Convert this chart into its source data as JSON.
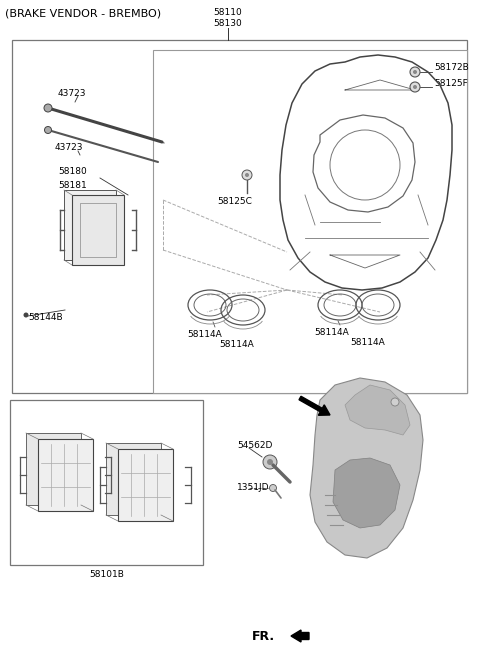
{
  "bg_color": "#ffffff",
  "fig_width": 4.8,
  "fig_height": 6.57,
  "dpi": 100,
  "labels": {
    "title": "(BRAKE VENDOR - BREMBO)",
    "top_center_1": "58110",
    "top_center_2": "58130",
    "l_43723_1": "43723",
    "l_43723_2": "43723",
    "l_58180": "58180",
    "l_58181": "58181",
    "l_58125C": "58125C",
    "l_58172B": "58172B",
    "l_58125F": "58125F",
    "l_58114A_1": "58114A",
    "l_58114A_2": "58114A",
    "l_58114A_3": "58114A",
    "l_58114A_4": "58114A",
    "l_58144B": "58144B",
    "l_58101B": "58101B",
    "l_54562D": "54562D",
    "l_1351JD": "1351JD",
    "l_FR": "FR."
  },
  "font_size_title": 8.0,
  "font_size_label": 6.5,
  "font_size_fr": 9.0,
  "line_color": "#333333",
  "box_color": "#888888"
}
